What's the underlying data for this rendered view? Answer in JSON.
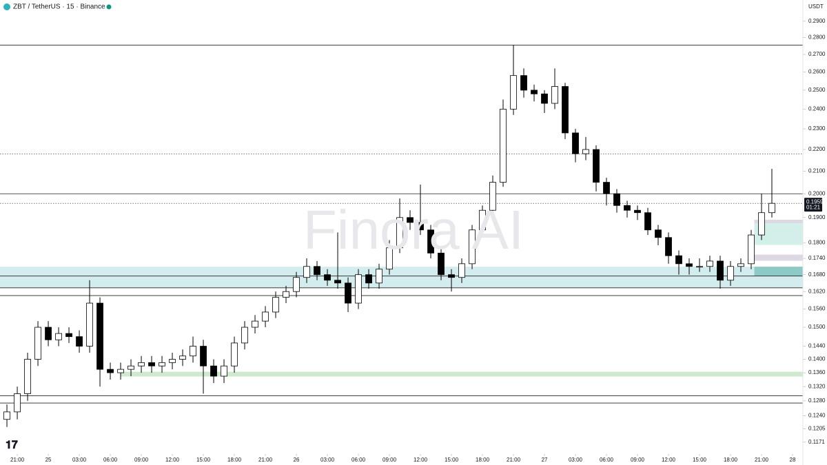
{
  "chart_data": {
    "type": "candlestick",
    "title": "ZBT / TetherUS · 15 · Binance",
    "currency": "USDT",
    "watermark": "Finora AI",
    "last_price": 0.1959,
    "countdown": "01:21",
    "log_scale": true,
    "up_color": "#ffffff",
    "down_color": "#000000",
    "xlim": [
      -1.67,
      76
    ],
    "ylim": [
      0.1145,
      0.3036
    ],
    "xticks": [
      {
        "value": 0,
        "label": "21:00"
      },
      {
        "value": 3,
        "label": "25"
      },
      {
        "value": 6,
        "label": "03:00"
      },
      {
        "value": 9,
        "label": "06:00"
      },
      {
        "value": 12,
        "label": "09:00"
      },
      {
        "value": 15,
        "label": "12:00"
      },
      {
        "value": 18,
        "label": "15:00"
      },
      {
        "value": 21,
        "label": "18:00"
      },
      {
        "value": 24,
        "label": "21:00"
      },
      {
        "value": 27,
        "label": "26"
      },
      {
        "value": 30,
        "label": "03:00"
      },
      {
        "value": 33,
        "label": "06:00"
      },
      {
        "value": 36,
        "label": "09:00"
      },
      {
        "value": 39,
        "label": "12:00"
      },
      {
        "value": 42,
        "label": "15:00"
      },
      {
        "value": 45,
        "label": "18:00"
      },
      {
        "value": 48,
        "label": "21:00"
      },
      {
        "value": 51,
        "label": "27"
      },
      {
        "value": 54,
        "label": "03:00"
      },
      {
        "value": 57,
        "label": "06:00"
      },
      {
        "value": 60,
        "label": "09:00"
      },
      {
        "value": 63,
        "label": "12:00"
      },
      {
        "value": 66,
        "label": "15:00"
      },
      {
        "value": 69,
        "label": "18:00"
      },
      {
        "value": 72,
        "label": "21:00"
      },
      {
        "value": 75,
        "label": "28"
      }
    ],
    "yticks": [
      {
        "value": 0.29,
        "label": "0.2900"
      },
      {
        "value": 0.28,
        "label": "0.2800"
      },
      {
        "value": 0.27,
        "label": "0.2700"
      },
      {
        "value": 0.26,
        "label": "0.2600"
      },
      {
        "value": 0.25,
        "label": "0.2500"
      },
      {
        "value": 0.24,
        "label": "0.2400"
      },
      {
        "value": 0.23,
        "label": "0.2300"
      },
      {
        "value": 0.22,
        "label": "0.2200"
      },
      {
        "value": 0.21,
        "label": "0.2100"
      },
      {
        "value": 0.2,
        "label": "0.2000"
      },
      {
        "value": 0.19,
        "label": "0.1900"
      },
      {
        "value": 0.18,
        "label": "0.1800"
      },
      {
        "value": 0.174,
        "label": "0.1740"
      },
      {
        "value": 0.168,
        "label": "0.1680"
      },
      {
        "value": 0.162,
        "label": "0.1620"
      },
      {
        "value": 0.156,
        "label": "0.1560"
      },
      {
        "value": 0.15,
        "label": "0.1500"
      },
      {
        "value": 0.144,
        "label": "0.1440"
      },
      {
        "value": 0.14,
        "label": "0.1400"
      },
      {
        "value": 0.136,
        "label": "0.1360"
      },
      {
        "value": 0.132,
        "label": "0.1320"
      },
      {
        "value": 0.128,
        "label": "0.1280"
      },
      {
        "value": 0.124,
        "label": "0.1240"
      },
      0.1205,
      0.1171
    ],
    "levels": [
      {
        "price": 0.2755,
        "style": "solid"
      },
      {
        "price": 0.2179,
        "style": "dotted"
      },
      {
        "price": 0.2,
        "style": "solid"
      },
      {
        "price": 0.1959,
        "style": "dotted"
      },
      {
        "price": 0.1675,
        "style": "solid"
      },
      {
        "price": 0.1633,
        "style": "solid"
      },
      {
        "price": 0.1606,
        "style": "solid"
      },
      {
        "price": 0.1294,
        "style": "solid"
      },
      {
        "price": 0.1274,
        "style": "solid"
      }
    ],
    "zones": [
      {
        "from": -1.67,
        "to": 76,
        "low": 0.1633,
        "high": 0.1709,
        "color": "#d3ecee"
      },
      {
        "from": 10,
        "to": 76,
        "low": 0.1349,
        "high": 0.1363,
        "color": "#cfe9cf"
      },
      {
        "from": 71.3,
        "to": 76,
        "low": 0.1877,
        "high": 0.1891,
        "color": "#ddd8e4"
      },
      {
        "from": 71.3,
        "to": 76,
        "low": 0.1791,
        "high": 0.1877,
        "color": "#d3efe9"
      },
      {
        "from": 71.3,
        "to": 76,
        "low": 0.1731,
        "high": 0.1754,
        "color": "#ddd8e4"
      },
      {
        "from": 71.3,
        "to": 76,
        "low": 0.1675,
        "high": 0.1709,
        "color": "#8ccbc5"
      }
    ],
    "x": [
      -1,
      0,
      1,
      2,
      3,
      4,
      5,
      6,
      7,
      8,
      9,
      10,
      11,
      12,
      13,
      14,
      15,
      16,
      17,
      18,
      19,
      20,
      21,
      22,
      23,
      24,
      25,
      26,
      27,
      28,
      29,
      30,
      31,
      32,
      33,
      34,
      35,
      36,
      37,
      38,
      39,
      40,
      41,
      42,
      43,
      44,
      45,
      46,
      47,
      48,
      49,
      50,
      51,
      52,
      53,
      54,
      55,
      56,
      57,
      58,
      59,
      60,
      61,
      62,
      63,
      64,
      65,
      66,
      67,
      68,
      69,
      70,
      71,
      72,
      73
    ],
    "open": [
      0.123,
      0.125,
      0.13,
      0.14,
      0.15,
      0.146,
      0.148,
      0.147,
      0.144,
      0.158,
      0.137,
      0.136,
      0.137,
      0.138,
      0.139,
      0.138,
      0.139,
      0.14,
      0.141,
      0.144,
      0.138,
      0.135,
      0.138,
      0.145,
      0.15,
      0.152,
      0.155,
      0.16,
      0.162,
      0.167,
      0.171,
      0.168,
      0.166,
      0.165,
      0.158,
      0.168,
      0.165,
      0.17,
      0.178,
      0.19,
      0.188,
      0.185,
      0.176,
      0.168,
      0.167,
      0.172,
      0.185,
      0.193,
      0.205,
      0.24,
      0.258,
      0.25,
      0.248,
      0.243,
      0.252,
      0.228,
      0.218,
      0.22,
      0.205,
      0.2,
      0.195,
      0.193,
      0.192,
      0.185,
      0.182,
      0.175,
      0.172,
      0.171,
      0.171,
      0.173,
      0.166,
      0.171,
      0.172,
      0.183,
      0.192
    ],
    "high": [
      0.127,
      0.132,
      0.142,
      0.152,
      0.152,
      0.15,
      0.15,
      0.149,
      0.166,
      0.16,
      0.139,
      0.139,
      0.14,
      0.141,
      0.141,
      0.141,
      0.142,
      0.143,
      0.147,
      0.146,
      0.14,
      0.14,
      0.147,
      0.152,
      0.154,
      0.157,
      0.162,
      0.164,
      0.169,
      0.174,
      0.173,
      0.17,
      0.184,
      0.167,
      0.17,
      0.17,
      0.172,
      0.181,
      0.198,
      0.193,
      0.204,
      0.187,
      0.178,
      0.17,
      0.174,
      0.187,
      0.195,
      0.208,
      0.245,
      0.2755,
      0.262,
      0.253,
      0.25,
      0.262,
      0.254,
      0.23,
      0.226,
      0.222,
      0.207,
      0.202,
      0.197,
      0.195,
      0.194,
      0.187,
      0.184,
      0.177,
      0.174,
      0.174,
      0.175,
      0.175,
      0.173,
      0.174,
      0.185,
      0.2,
      0.211
    ],
    "low": [
      0.121,
      0.123,
      0.128,
      0.138,
      0.144,
      0.144,
      0.145,
      0.142,
      0.142,
      0.132,
      0.134,
      0.134,
      0.135,
      0.136,
      0.136,
      0.136,
      0.137,
      0.138,
      0.139,
      0.13,
      0.133,
      0.133,
      0.136,
      0.143,
      0.148,
      0.15,
      0.153,
      0.158,
      0.16,
      0.165,
      0.166,
      0.164,
      0.163,
      0.155,
      0.156,
      0.163,
      0.163,
      0.168,
      0.176,
      0.185,
      0.183,
      0.174,
      0.166,
      0.162,
      0.165,
      0.17,
      0.183,
      0.191,
      0.203,
      0.237,
      0.246,
      0.244,
      0.238,
      0.24,
      0.225,
      0.214,
      0.215,
      0.201,
      0.195,
      0.192,
      0.19,
      0.189,
      0.183,
      0.179,
      0.172,
      0.168,
      0.168,
      0.169,
      0.169,
      0.163,
      0.164,
      0.169,
      0.17,
      0.181,
      0.19
    ],
    "close": [
      0.125,
      0.13,
      0.14,
      0.15,
      0.146,
      0.148,
      0.147,
      0.144,
      0.158,
      0.137,
      0.136,
      0.137,
      0.138,
      0.139,
      0.138,
      0.139,
      0.14,
      0.141,
      0.144,
      0.138,
      0.135,
      0.138,
      0.145,
      0.15,
      0.152,
      0.155,
      0.16,
      0.162,
      0.167,
      0.171,
      0.168,
      0.166,
      0.165,
      0.158,
      0.168,
      0.165,
      0.17,
      0.178,
      0.19,
      0.188,
      0.185,
      0.176,
      0.168,
      0.167,
      0.172,
      0.185,
      0.193,
      0.205,
      0.24,
      0.258,
      0.25,
      0.248,
      0.243,
      0.252,
      0.228,
      0.218,
      0.22,
      0.205,
      0.2,
      0.195,
      0.193,
      0.192,
      0.185,
      0.182,
      0.175,
      0.172,
      0.171,
      0.171,
      0.173,
      0.166,
      0.171,
      0.172,
      0.183,
      0.192,
      0.1959
    ]
  }
}
